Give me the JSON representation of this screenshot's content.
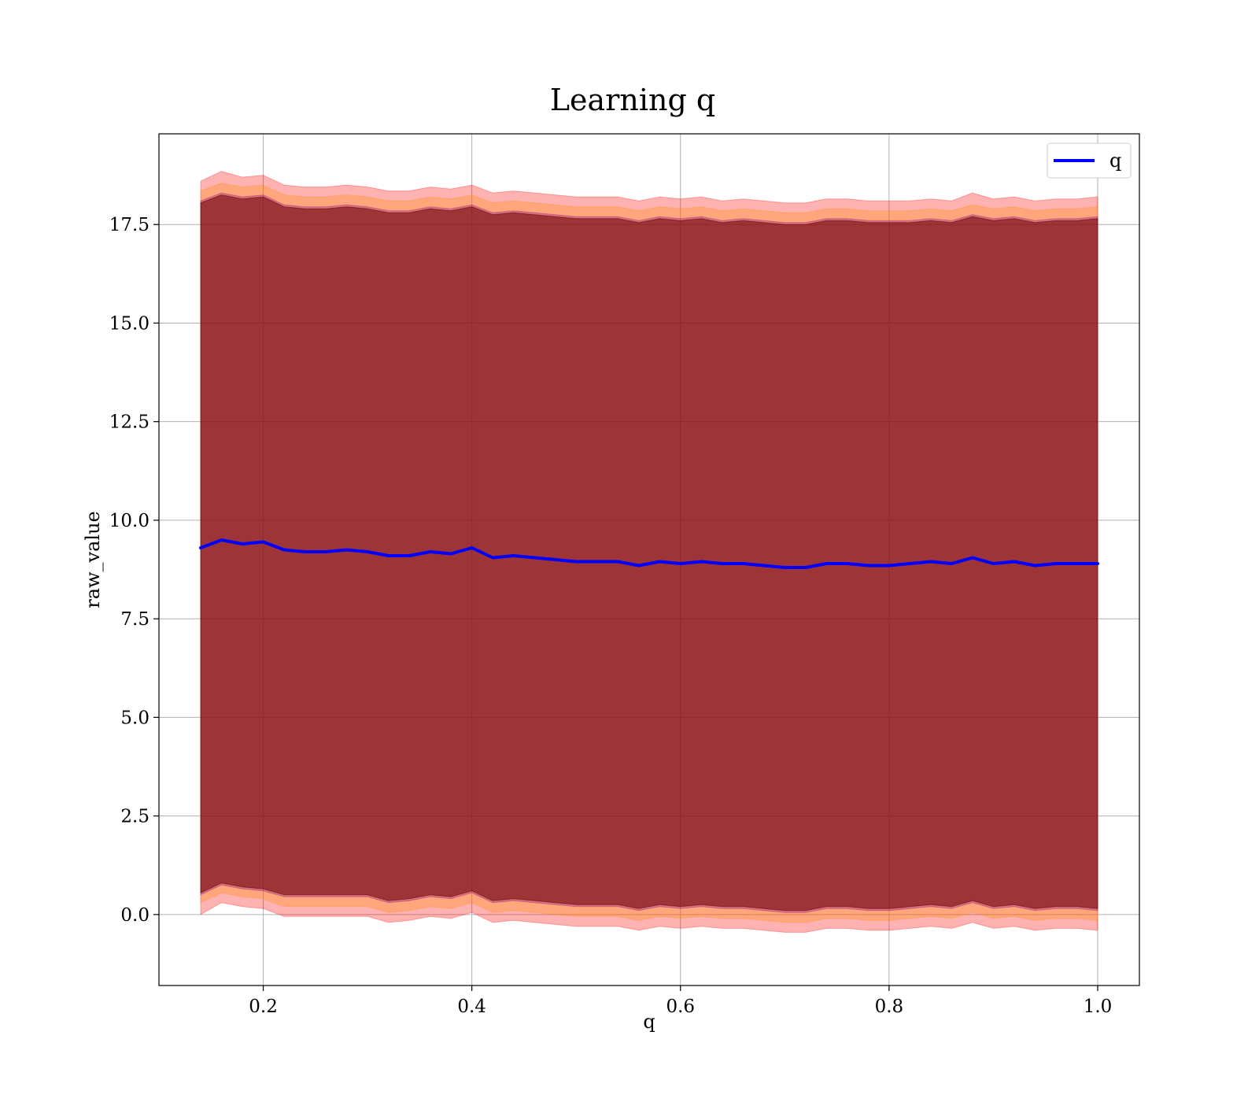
{
  "chart_data": {
    "type": "line",
    "title": "Learning q",
    "xlabel": "q",
    "ylabel": "raw_value",
    "xlim": [
      0.1,
      1.04
    ],
    "ylim": [
      -1.8,
      19.8
    ],
    "grid": true,
    "legend_position": "top-right",
    "x_ticks": [
      "0.2",
      "0.4",
      "0.6",
      "0.8",
      "1.0"
    ],
    "y_ticks": [
      "0.0",
      "2.5",
      "5.0",
      "7.5",
      "10.0",
      "12.5",
      "15.0",
      "17.5"
    ],
    "x_tick_values": [
      0.2,
      0.4,
      0.6,
      0.8,
      1.0
    ],
    "y_tick_values": [
      0.0,
      2.5,
      5.0,
      7.5,
      10.0,
      12.5,
      15.0,
      17.5
    ],
    "series": [
      {
        "name": "q",
        "color": "#0000ff",
        "x": [
          0.14,
          0.16,
          0.18,
          0.2,
          0.22,
          0.24,
          0.26,
          0.28,
          0.3,
          0.32,
          0.34,
          0.36,
          0.38,
          0.4,
          0.42,
          0.44,
          0.46,
          0.48,
          0.5,
          0.52,
          0.54,
          0.56,
          0.58,
          0.6,
          0.62,
          0.64,
          0.66,
          0.68,
          0.7,
          0.72,
          0.74,
          0.76,
          0.78,
          0.8,
          0.82,
          0.84,
          0.86,
          0.88,
          0.9,
          0.92,
          0.94,
          0.96,
          0.98,
          1.0
        ],
        "values": [
          9.3,
          9.5,
          9.4,
          9.45,
          9.25,
          9.2,
          9.2,
          9.25,
          9.2,
          9.1,
          9.1,
          9.2,
          9.15,
          9.3,
          9.05,
          9.1,
          9.05,
          9.0,
          8.95,
          8.95,
          8.95,
          8.85,
          8.95,
          8.9,
          8.95,
          8.9,
          8.9,
          8.85,
          8.8,
          8.8,
          8.9,
          8.9,
          8.85,
          8.85,
          8.9,
          8.95,
          8.9,
          9.05,
          8.9,
          8.95,
          8.85,
          8.9,
          8.9,
          8.9
        ]
      }
    ],
    "bands": [
      {
        "color": "#ff0000",
        "opacity": 0.3,
        "upper": [
          18.6,
          18.85,
          18.7,
          18.75,
          18.5,
          18.45,
          18.45,
          18.5,
          18.45,
          18.35,
          18.35,
          18.45,
          18.4,
          18.5,
          18.3,
          18.35,
          18.3,
          18.25,
          18.2,
          18.2,
          18.2,
          18.1,
          18.2,
          18.15,
          18.2,
          18.1,
          18.15,
          18.1,
          18.05,
          18.05,
          18.15,
          18.15,
          18.1,
          18.1,
          18.1,
          18.15,
          18.1,
          18.3,
          18.15,
          18.2,
          18.1,
          18.15,
          18.15,
          18.2
        ],
        "lower": [
          0.0,
          0.3,
          0.2,
          0.15,
          -0.05,
          -0.05,
          -0.05,
          -0.05,
          -0.05,
          -0.2,
          -0.15,
          -0.05,
          -0.1,
          0.05,
          -0.2,
          -0.15,
          -0.2,
          -0.25,
          -0.3,
          -0.3,
          -0.3,
          -0.4,
          -0.3,
          -0.35,
          -0.3,
          -0.35,
          -0.35,
          -0.4,
          -0.45,
          -0.45,
          -0.35,
          -0.35,
          -0.4,
          -0.4,
          -0.35,
          -0.3,
          -0.35,
          -0.2,
          -0.35,
          -0.3,
          -0.4,
          -0.35,
          -0.35,
          -0.4
        ]
      },
      {
        "color": "#ff8c00",
        "opacity": 0.3,
        "upper": [
          18.35,
          18.55,
          18.45,
          18.5,
          18.25,
          18.2,
          18.2,
          18.25,
          18.2,
          18.1,
          18.1,
          18.2,
          18.15,
          18.25,
          18.05,
          18.1,
          18.05,
          18.0,
          17.95,
          17.95,
          17.95,
          17.85,
          17.95,
          17.9,
          17.95,
          17.85,
          17.9,
          17.85,
          17.8,
          17.8,
          17.9,
          17.9,
          17.85,
          17.85,
          17.85,
          17.9,
          17.85,
          18.0,
          17.9,
          17.95,
          17.85,
          17.9,
          17.9,
          17.95
        ],
        "lower": [
          0.3,
          0.55,
          0.45,
          0.4,
          0.2,
          0.2,
          0.2,
          0.2,
          0.2,
          0.05,
          0.1,
          0.2,
          0.15,
          0.3,
          0.05,
          0.1,
          0.05,
          0.0,
          -0.05,
          -0.05,
          -0.05,
          -0.15,
          -0.05,
          -0.1,
          -0.05,
          -0.1,
          -0.1,
          -0.15,
          -0.2,
          -0.2,
          -0.1,
          -0.1,
          -0.15,
          -0.15,
          -0.1,
          -0.05,
          -0.1,
          0.05,
          -0.1,
          -0.05,
          -0.15,
          -0.1,
          -0.1,
          -0.15
        ]
      },
      {
        "color": "#800080",
        "opacity": 0.3,
        "upper": [
          18.1,
          18.3,
          18.2,
          18.25,
          18.0,
          17.95,
          17.95,
          18.0,
          17.95,
          17.85,
          17.85,
          17.95,
          17.9,
          18.0,
          17.8,
          17.85,
          17.8,
          17.75,
          17.7,
          17.7,
          17.7,
          17.6,
          17.7,
          17.65,
          17.7,
          17.6,
          17.65,
          17.6,
          17.55,
          17.55,
          17.65,
          17.65,
          17.6,
          17.6,
          17.6,
          17.65,
          17.6,
          17.75,
          17.65,
          17.7,
          17.6,
          17.65,
          17.65,
          17.7
        ],
        "lower": [
          0.5,
          0.75,
          0.65,
          0.6,
          0.45,
          0.45,
          0.45,
          0.45,
          0.45,
          0.3,
          0.35,
          0.45,
          0.4,
          0.55,
          0.3,
          0.35,
          0.3,
          0.25,
          0.2,
          0.2,
          0.2,
          0.1,
          0.2,
          0.15,
          0.2,
          0.15,
          0.15,
          0.1,
          0.05,
          0.05,
          0.15,
          0.15,
          0.1,
          0.1,
          0.15,
          0.2,
          0.15,
          0.3,
          0.15,
          0.2,
          0.1,
          0.15,
          0.15,
          0.1
        ]
      },
      {
        "color": "#6b0000",
        "opacity": 0.55,
        "upper": [
          18.05,
          18.25,
          18.15,
          18.2,
          17.95,
          17.9,
          17.9,
          17.95,
          17.9,
          17.8,
          17.8,
          17.9,
          17.85,
          17.95,
          17.75,
          17.8,
          17.75,
          17.7,
          17.65,
          17.65,
          17.65,
          17.55,
          17.65,
          17.6,
          17.65,
          17.55,
          17.6,
          17.55,
          17.5,
          17.5,
          17.6,
          17.6,
          17.55,
          17.55,
          17.55,
          17.6,
          17.55,
          17.7,
          17.6,
          17.65,
          17.55,
          17.6,
          17.6,
          17.65
        ],
        "lower": [
          0.55,
          0.8,
          0.7,
          0.65,
          0.5,
          0.5,
          0.5,
          0.5,
          0.5,
          0.35,
          0.4,
          0.5,
          0.45,
          0.6,
          0.35,
          0.4,
          0.35,
          0.3,
          0.25,
          0.25,
          0.25,
          0.15,
          0.25,
          0.2,
          0.25,
          0.2,
          0.2,
          0.15,
          0.1,
          0.1,
          0.2,
          0.2,
          0.15,
          0.15,
          0.2,
          0.25,
          0.2,
          0.35,
          0.2,
          0.25,
          0.15,
          0.2,
          0.2,
          0.15
        ]
      }
    ]
  }
}
